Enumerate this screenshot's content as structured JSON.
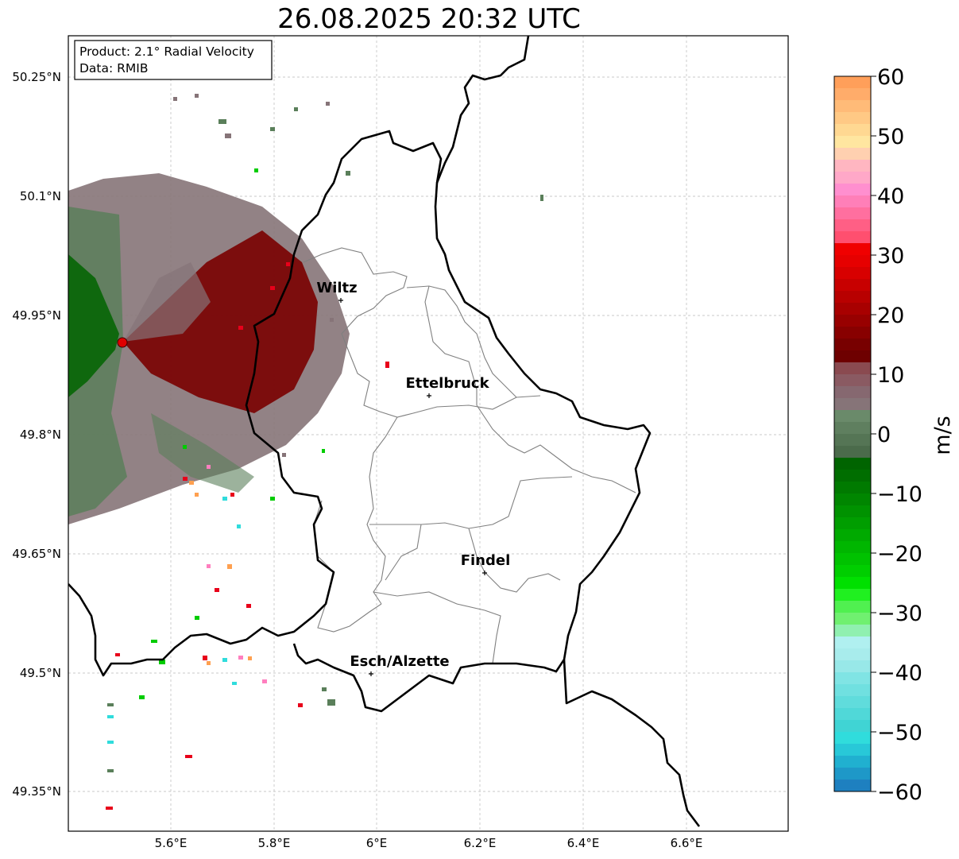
{
  "title": "26.08.2025 20:32 UTC",
  "info_box": {
    "product": "Product: 2.1° Radial Velocity",
    "data": "Data: RMIB"
  },
  "axes": {
    "lat_labels": [
      "50.25°N",
      "50.1°N",
      "49.95°N",
      "49.8°N",
      "49.65°N",
      "49.5°N",
      "49.35°N"
    ],
    "lon_labels": [
      "5.6°E",
      "5.8°E",
      "6°E",
      "6.2°E",
      "6.4°E",
      "6.6°E"
    ]
  },
  "cities": [
    {
      "name": "Wiltz"
    },
    {
      "name": "Ettelbruck"
    },
    {
      "name": "Findel"
    },
    {
      "name": "Esch/Alzette"
    }
  ],
  "colorbar": {
    "label": "m/s",
    "ticks": [
      "60",
      "50",
      "40",
      "30",
      "20",
      "10",
      "0",
      "−10",
      "−20",
      "−30",
      "−40",
      "−50",
      "−60"
    ],
    "min": -60,
    "max": 60
  },
  "colors": {
    "negative_strong": "#006400",
    "negative_medium": "#00cc00",
    "negative_light": "#5a7f5a",
    "neutral": "#867478",
    "positive_dark": "#7a0000",
    "positive_red": "#e8001a",
    "positive_pink": "#ff7fbf",
    "positive_orange": "#ffa050",
    "negative_cyan": "#30dcdc",
    "negative_blue": "#1e7fc0",
    "radar_site": "#e00000"
  }
}
